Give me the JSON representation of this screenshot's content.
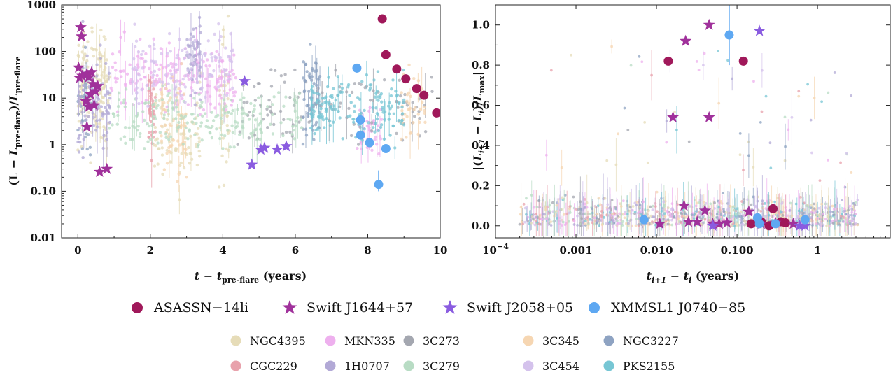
{
  "chart_data": [
    {
      "type": "scatter",
      "xlabel": "t − t_pre-flare (years)",
      "ylabel": "(L−L_pre-flare)/L_pre-flare",
      "xlim": [
        -0.45,
        10
      ],
      "ylim": [
        0.01,
        1000
      ],
      "y_scale": "log",
      "x_ticks": [
        "0",
        "2",
        "4",
        "6",
        "8",
        "10"
      ],
      "y_ticks": [
        "0.01",
        "0.10",
        "1",
        "10",
        "100",
        "1000"
      ],
      "highlight_series": [
        {
          "name": "ASASSN−14li",
          "marker": "circle",
          "color": "#a0185a",
          "points": [
            [
              8.4,
              500
            ],
            [
              8.5,
              85
            ],
            [
              8.8,
              42
            ],
            [
              9.05,
              26
            ],
            [
              9.35,
              16
            ],
            [
              9.55,
              11.5
            ],
            [
              9.9,
              4.8
            ]
          ]
        },
        {
          "name": "Swift J1644+57",
          "marker": "star",
          "color": "#a0319b",
          "points": [
            [
              0.08,
              330
            ],
            [
              0.1,
              210
            ],
            [
              0.02,
              45
            ],
            [
              0.12,
              30
            ],
            [
              0.05,
              27
            ],
            [
              0.25,
              33
            ],
            [
              0.38,
              36
            ],
            [
              0.3,
              28
            ],
            [
              0.42,
              20
            ],
            [
              0.55,
              18
            ],
            [
              0.48,
              14
            ],
            [
              0.35,
              12
            ],
            [
              0.22,
              8.5
            ],
            [
              0.3,
              6.5
            ],
            [
              0.45,
              7
            ],
            [
              0.25,
              2.4
            ],
            [
              0.6,
              0.26
            ],
            [
              0.8,
              0.3
            ]
          ]
        },
        {
          "name": "Swift J2058+05",
          "marker": "star",
          "color": "#8a5ce0",
          "points": [
            [
              4.6,
              23
            ],
            [
              4.8,
              0.37
            ],
            [
              5.05,
              0.78
            ],
            [
              5.15,
              0.85
            ],
            [
              5.5,
              0.78
            ],
            [
              5.75,
              0.92
            ]
          ]
        },
        {
          "name": "XMMSL1 J0740−85",
          "marker": "circle",
          "color": "#5ea8f2",
          "points": [
            [
              7.7,
              44
            ],
            [
              7.8,
              3.4
            ],
            [
              7.8,
              1.6
            ],
            [
              8.05,
              1.1
            ],
            [
              8.5,
              0.82
            ],
            [
              8.3,
              0.14
            ]
          ]
        }
      ]
    },
    {
      "type": "scatter",
      "xlabel": "t_i+1 − t_i (years)",
      "ylabel": "|(L_i+1 − L_i)/L_max|",
      "xlim": [
        0.0001,
        8
      ],
      "ylim": [
        -0.06,
        1.1
      ],
      "x_scale": "log",
      "x_ticks": [
        "10^−4",
        "0.001",
        "0.010",
        "0.100",
        "1"
      ],
      "y_ticks": [
        "0.0",
        "0.2",
        "0.4",
        "0.6",
        "0.8",
        "1.0"
      ],
      "highlight_series": [
        {
          "name": "ASASSN−14li",
          "marker": "circle",
          "color": "#a0185a",
          "points": [
            [
              0.014,
              0.82
            ],
            [
              0.12,
              0.82
            ],
            [
              0.28,
              0.085
            ],
            [
              0.15,
              0.01
            ],
            [
              0.2,
              0.02
            ],
            [
              0.35,
              0.02
            ],
            [
              0.4,
              0.015
            ],
            [
              0.25,
              0.0
            ]
          ]
        },
        {
          "name": "Swift J1644+57",
          "marker": "star",
          "color": "#a0319b",
          "points": [
            [
              0.023,
              0.92
            ],
            [
              0.045,
              1.0
            ],
            [
              0.016,
              0.54
            ],
            [
              0.045,
              0.54
            ],
            [
              0.022,
              0.1
            ],
            [
              0.04,
              0.075
            ],
            [
              0.14,
              0.07
            ],
            [
              0.011,
              0.01
            ],
            [
              0.025,
              0.02
            ],
            [
              0.032,
              0.02
            ],
            [
              0.05,
              0.01
            ],
            [
              0.06,
              0.01
            ],
            [
              0.075,
              0.015
            ],
            [
              0.2,
              0.01
            ],
            [
              0.3,
              0.015
            ],
            [
              0.5,
              0.01
            ]
          ]
        },
        {
          "name": "Swift J2058+05",
          "marker": "star",
          "color": "#8a5ce0",
          "points": [
            [
              0.19,
              0.97
            ],
            [
              0.05,
              0.0
            ],
            [
              0.6,
              0.0
            ],
            [
              0.7,
              0.0
            ]
          ]
        },
        {
          "name": "XMMSL1 J0740−85",
          "marker": "circle",
          "color": "#5ea8f2",
          "points": [
            [
              0.08,
              0.95
            ],
            [
              0.007,
              0.03
            ],
            [
              0.18,
              0.04
            ],
            [
              0.19,
              0.01
            ],
            [
              0.3,
              0.01
            ],
            [
              0.7,
              0.03
            ]
          ]
        }
      ]
    }
  ],
  "background_sources": [
    {
      "name": "NGC4395",
      "color": "#e6dcb8"
    },
    {
      "name": "MKN335",
      "color": "#eeb0ee"
    },
    {
      "name": "3C273",
      "color": "#a4a7b0"
    },
    {
      "name": "3C345",
      "color": "#f6d6b2"
    },
    {
      "name": "NGC3227",
      "color": "#8ea3c2"
    },
    {
      "name": "CGC229",
      "color": "#e8a2ac"
    },
    {
      "name": "1H0707",
      "color": "#b2a9d6"
    },
    {
      "name": "3C279",
      "color": "#b8dcc4"
    },
    {
      "name": "3C454",
      "color": "#d4c2ec"
    },
    {
      "name": "PKS2155",
      "color": "#77c6d4"
    }
  ],
  "legend": {
    "main": [
      "ASASSN−14li",
      "Swift J1644+57",
      "Swift J2058+05",
      "XMMSL1 J0740−85"
    ],
    "background": [
      "NGC4395",
      "MKN335",
      "3C273",
      "3C345",
      "NGC3227",
      "CGC229",
      "1H0707",
      "3C279",
      "3C454",
      "PKS2155"
    ]
  }
}
